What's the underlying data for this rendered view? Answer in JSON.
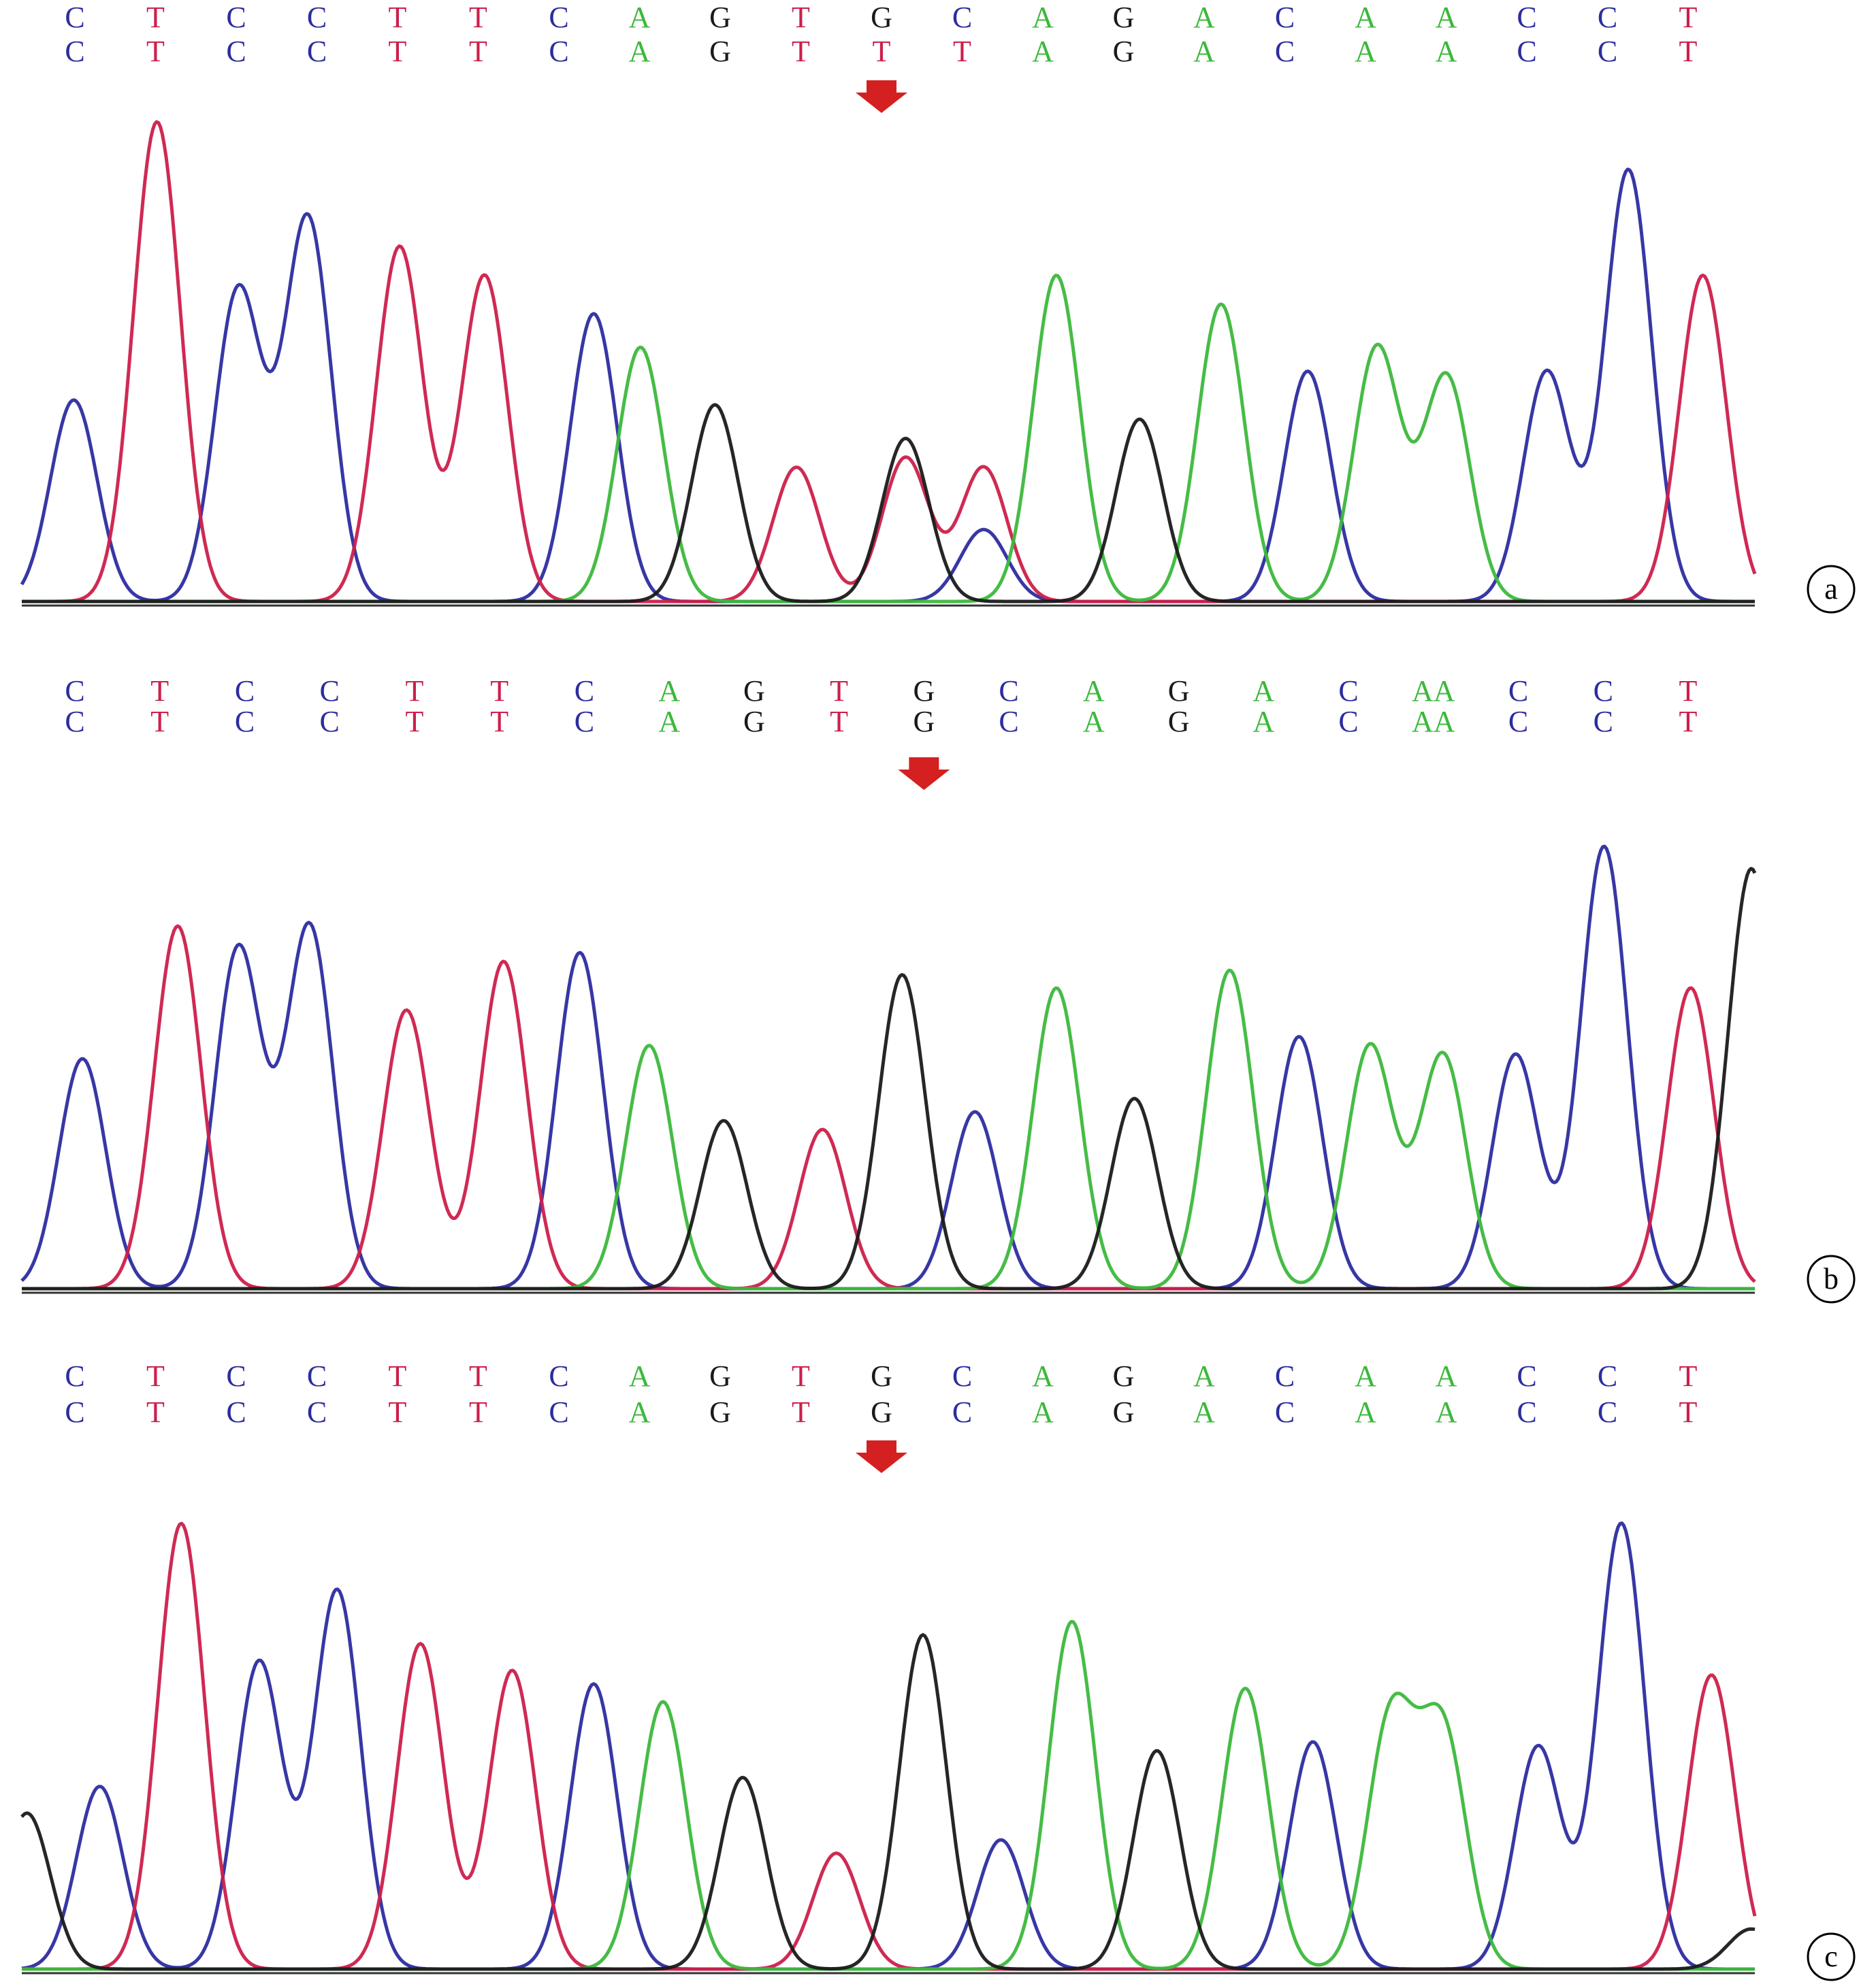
{
  "colors": {
    "A": "#3cb83c",
    "C": "#2c2ca0",
    "G": "#1a1a1a",
    "T": "#cc1f4a",
    "arrow": "#d42020",
    "baseline": "#333333"
  },
  "chart_data": [
    {
      "type": "line",
      "panel_label": "a",
      "description_note": "Sanger sequencing chromatogram; top row = reference, second row = sample; arrow marks variant position",
      "sequence_top": [
        "C",
        "T",
        "C",
        "C",
        "T",
        "T",
        "C",
        "A",
        "G",
        "T",
        "G",
        "C",
        "A",
        "G",
        "A",
        "C",
        "A",
        "A",
        "C",
        "C",
        "T"
      ],
      "sequence_bottom": [
        "C",
        "T",
        "C",
        "C",
        "T",
        "T",
        "C",
        "A",
        "G",
        "T",
        "T",
        "T",
        "A",
        "G",
        "A",
        "C",
        "A",
        "A",
        "C",
        "C",
        "T"
      ],
      "arrow_at_index": 10,
      "series": [
        {
          "name": "C",
          "peaks": [
            [
              0.03,
              0.42
            ],
            [
              0.125,
              0.65
            ],
            [
              0.165,
              0.8
            ],
            [
              0.33,
              0.6
            ],
            [
              0.555,
              0.15
            ],
            [
              0.742,
              0.48
            ],
            [
              0.88,
              0.48
            ],
            [
              0.927,
              0.9
            ]
          ]
        },
        {
          "name": "T",
          "peaks": [
            [
              0.078,
              1.0
            ],
            [
              0.218,
              0.74
            ],
            [
              0.267,
              0.68
            ],
            [
              0.447,
              0.28
            ],
            [
              0.51,
              0.3
            ],
            [
              0.555,
              0.28
            ],
            [
              0.97,
              0.68
            ]
          ]
        },
        {
          "name": "A",
          "peaks": [
            [
              0.357,
              0.53
            ],
            [
              0.597,
              0.68
            ],
            [
              0.692,
              0.62
            ],
            [
              0.782,
              0.53
            ],
            [
              0.822,
              0.47
            ]
          ]
        },
        {
          "name": "G",
          "peaks": [
            [
              0.4,
              0.41
            ],
            [
              0.51,
              0.34
            ],
            [
              0.645,
              0.38
            ]
          ]
        }
      ]
    },
    {
      "type": "line",
      "panel_label": "b",
      "sequence_top": [
        "C",
        "T",
        "C",
        "C",
        "T",
        "T",
        "C",
        "A",
        "G",
        "T",
        "G",
        "C",
        "A",
        "G",
        "A",
        "C",
        "AA",
        "C",
        "C",
        "T"
      ],
      "sequence_bottom": [
        "C",
        "T",
        "C",
        "C",
        "T",
        "T",
        "C",
        "A",
        "G",
        "T",
        "G",
        "C",
        "A",
        "G",
        "A",
        "C",
        "AA",
        "C",
        "C",
        "T"
      ],
      "arrow_at_index": 10,
      "series": [
        {
          "name": "C",
          "peaks": [
            [
              0.035,
              0.52
            ],
            [
              0.125,
              0.77
            ],
            [
              0.166,
              0.82
            ],
            [
              0.322,
              0.76
            ],
            [
              0.55,
              0.4
            ],
            [
              0.737,
              0.57
            ],
            [
              0.862,
              0.53
            ],
            [
              0.913,
              1.0
            ]
          ]
        },
        {
          "name": "T",
          "peaks": [
            [
              0.09,
              0.82
            ],
            [
              0.222,
              0.63
            ],
            [
              0.278,
              0.74
            ],
            [
              0.462,
              0.36
            ],
            [
              0.963,
              0.68
            ]
          ]
        },
        {
          "name": "A",
          "peaks": [
            [
              0.362,
              0.55
            ],
            [
              0.597,
              0.68
            ],
            [
              0.697,
              0.72
            ],
            [
              0.778,
              0.55
            ],
            [
              0.82,
              0.53
            ]
          ]
        },
        {
          "name": "G",
          "peaks": [
            [
              0.405,
              0.38
            ],
            [
              0.508,
              0.71
            ],
            [
              0.642,
              0.43
            ],
            [
              0.998,
              0.95
            ]
          ]
        }
      ]
    },
    {
      "type": "line",
      "panel_label": "c",
      "sequence_top": [
        "C",
        "T",
        "C",
        "C",
        "T",
        "T",
        "C",
        "A",
        "G",
        "T",
        "G",
        "C",
        "A",
        "G",
        "A",
        "C",
        "A",
        "A",
        "C",
        "C",
        "T"
      ],
      "sequence_bottom": [
        "C",
        "T",
        "C",
        "C",
        "T",
        "T",
        "C",
        "A",
        "G",
        "T",
        "G",
        "C",
        "A",
        "G",
        "A",
        "C",
        "A",
        "A",
        "C",
        "C",
        "T"
      ],
      "arrow_at_index": 10,
      "series": [
        {
          "name": "C",
          "peaks": [
            [
              0.045,
              0.41
            ],
            [
              0.137,
              0.69
            ],
            [
              0.182,
              0.85
            ],
            [
              0.33,
              0.64
            ],
            [
              0.565,
              0.29
            ],
            [
              0.745,
              0.51
            ],
            [
              0.875,
              0.5
            ],
            [
              0.923,
              1.0
            ]
          ]
        },
        {
          "name": "T",
          "peaks": [
            [
              0.092,
              1.0
            ],
            [
              0.23,
              0.73
            ],
            [
              0.283,
              0.67
            ],
            [
              0.47,
              0.26
            ],
            [
              0.975,
              0.66
            ]
          ]
        },
        {
          "name": "A",
          "peaks": [
            [
              0.37,
              0.6
            ],
            [
              0.606,
              0.78
            ],
            [
              0.706,
              0.63
            ],
            [
              0.79,
              0.56
            ],
            [
              0.82,
              0.53
            ]
          ]
        },
        {
          "name": "G",
          "peaks": [
            [
              0.003,
              0.35
            ],
            [
              0.416,
              0.43
            ],
            [
              0.52,
              0.75
            ],
            [
              0.655,
              0.49
            ],
            [
              0.998,
              0.09
            ]
          ]
        }
      ]
    }
  ]
}
